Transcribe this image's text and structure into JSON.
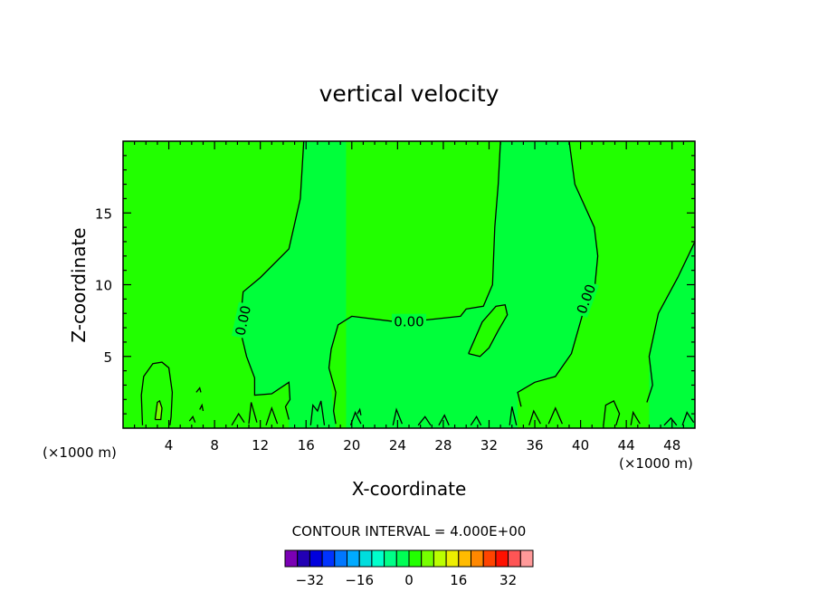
{
  "chart_data": {
    "type": "contour",
    "title": "vertical velocity",
    "xlabel": "X-coordinate",
    "ylabel": "Z-coordinate",
    "x_unit_left": "(×1000 m)",
    "x_unit_right": "(×1000 m)",
    "xlim": [
      0,
      50
    ],
    "ylim": [
      0,
      20
    ],
    "x_ticks": [
      4,
      8,
      12,
      16,
      20,
      24,
      28,
      32,
      36,
      40,
      44,
      48
    ],
    "y_ticks": [
      5,
      10,
      15
    ],
    "contour_labels": [
      {
        "text": "0.00",
        "x": 10.5,
        "y": 7.5,
        "angle": -78
      },
      {
        "text": "0.00",
        "x": 25.0,
        "y": 7.4,
        "angle": 0
      },
      {
        "text": "0.00",
        "x": 40.5,
        "y": 9.0,
        "angle": -70
      }
    ],
    "contour_interval_text": "CONTOUR INTERVAL = 4.000E+00",
    "colorbar": {
      "colors": [
        "#7a00b4",
        "#2200b4",
        "#0000dd",
        "#0033ff",
        "#0077ff",
        "#00aaff",
        "#00dddd",
        "#00ffcc",
        "#00ff88",
        "#00ff55",
        "#22ff00",
        "#77ff00",
        "#bbff00",
        "#eeee00",
        "#ffbb00",
        "#ff8800",
        "#ff4400",
        "#ff1100",
        "#ff5555",
        "#ff9999"
      ],
      "tick_labels": [
        "−32",
        "−16",
        "0",
        "16",
        "32"
      ],
      "tick_values": [
        -32,
        -16,
        0,
        16,
        32
      ],
      "min": -40,
      "max": 40
    },
    "fill_colors": {
      "positive_band": "#22ff00",
      "negative_band": "#00ff3a",
      "strong_positive": "#77ff00"
    },
    "regions": [
      {
        "name": "updraft-left",
        "level": "positive_band",
        "points": [
          [
            0,
            20
          ],
          [
            15.8,
            20
          ],
          [
            15.5,
            16
          ],
          [
            14.5,
            12.5
          ],
          [
            12,
            10.5
          ],
          [
            10.5,
            9.5
          ],
          [
            10.2,
            7
          ],
          [
            10.8,
            5
          ],
          [
            11.5,
            3.5
          ],
          [
            11.5,
            2.3
          ],
          [
            13,
            2.4
          ],
          [
            14.5,
            3.2
          ],
          [
            14.5,
            0
          ],
          [
            0,
            0
          ]
        ]
      },
      {
        "name": "updraft-middle",
        "level": "positive_band",
        "points": [
          [
            33.0,
            20
          ],
          [
            32.8,
            17
          ],
          [
            32.5,
            14
          ],
          [
            32.3,
            10
          ],
          [
            31.5,
            8.5
          ],
          [
            30.0,
            8.3
          ],
          [
            29.5,
            7.8
          ],
          [
            26,
            7.5
          ],
          [
            24,
            7.4
          ],
          [
            20,
            7.8
          ],
          [
            18.8,
            7.2
          ],
          [
            18.2,
            5.5
          ],
          [
            18,
            4.2
          ],
          [
            18.6,
            0
          ],
          [
            19.5,
            0
          ],
          [
            19.5,
            20
          ]
        ]
      },
      {
        "name": "updraft-right",
        "level": "positive_band",
        "points": [
          [
            39,
            20
          ],
          [
            39.5,
            17
          ],
          [
            41.2,
            14
          ],
          [
            41.5,
            12
          ],
          [
            41.2,
            9.5
          ],
          [
            40.2,
            8
          ],
          [
            39.2,
            5.2
          ],
          [
            37.8,
            3.6
          ],
          [
            36,
            3.2
          ],
          [
            34.5,
            2.5
          ],
          [
            34.5,
            0
          ],
          [
            46,
            0
          ],
          [
            46,
            5
          ],
          [
            46.8,
            8
          ],
          [
            48.5,
            10.5
          ],
          [
            50,
            13
          ],
          [
            50,
            20
          ]
        ]
      },
      {
        "name": "updraft-blob",
        "level": "positive_band",
        "points": [
          [
            30.2,
            5.2
          ],
          [
            31.4,
            7.4
          ],
          [
            32.6,
            8.5
          ],
          [
            33.4,
            8.6
          ],
          [
            33.6,
            7.9
          ],
          [
            32.8,
            6.8
          ],
          [
            32.0,
            5.6
          ],
          [
            31.2,
            5.0
          ]
        ]
      },
      {
        "name": "core-small",
        "level": "strong_positive",
        "points": [
          [
            2.8,
            0.6
          ],
          [
            3.0,
            1.8
          ],
          [
            3.2,
            1.9
          ],
          [
            3.4,
            1.4
          ],
          [
            3.3,
            0.6
          ]
        ]
      }
    ],
    "contours": [
      [
        [
          15.8,
          20
        ],
        [
          15.5,
          16
        ],
        [
          14.5,
          12.5
        ],
        [
          12,
          10.5
        ],
        [
          10.5,
          9.5
        ],
        [
          10.2,
          7
        ],
        [
          10.8,
          5
        ],
        [
          11.5,
          3.5
        ],
        [
          11.5,
          2.3
        ],
        [
          13,
          2.4
        ],
        [
          14.5,
          3.2
        ],
        [
          14.6,
          2
        ],
        [
          14.2,
          1.5
        ],
        [
          14.5,
          0.6
        ]
      ],
      [
        [
          33.0,
          20
        ],
        [
          32.8,
          17
        ],
        [
          32.5,
          14
        ],
        [
          32.3,
          10
        ],
        [
          31.5,
          8.5
        ],
        [
          30.0,
          8.3
        ],
        [
          29.5,
          7.8
        ],
        [
          26,
          7.5
        ],
        [
          24,
          7.4
        ],
        [
          20,
          7.8
        ],
        [
          18.8,
          7.2
        ],
        [
          18.2,
          5.5
        ],
        [
          18,
          4.2
        ],
        [
          18.6,
          2.5
        ],
        [
          18.4,
          1.2
        ],
        [
          18.6,
          0.3
        ]
      ],
      [
        [
          39,
          20
        ],
        [
          39.5,
          17
        ],
        [
          41.2,
          14
        ],
        [
          41.5,
          12
        ],
        [
          41.2,
          9.5
        ],
        [
          40.2,
          8
        ],
        [
          39.2,
          5.2
        ],
        [
          37.8,
          3.6
        ],
        [
          36,
          3.2
        ],
        [
          34.5,
          2.5
        ],
        [
          34.8,
          1.5
        ]
      ],
      [
        [
          50,
          13
        ],
        [
          48.5,
          10.5
        ],
        [
          46.8,
          8
        ],
        [
          46,
          5
        ],
        [
          46.3,
          3
        ],
        [
          45.8,
          1.8
        ]
      ],
      [
        [
          30.2,
          5.2
        ],
        [
          31.4,
          7.4
        ],
        [
          32.6,
          8.5
        ],
        [
          33.4,
          8.6
        ],
        [
          33.6,
          7.9
        ],
        [
          32.8,
          6.8
        ],
        [
          32.0,
          5.6
        ],
        [
          31.2,
          5.0
        ],
        [
          30.2,
          5.2
        ]
      ],
      [
        [
          1.7,
          0.2
        ],
        [
          1.6,
          2.3
        ],
        [
          1.8,
          3.6
        ],
        [
          2.6,
          4.5
        ],
        [
          3.4,
          4.6
        ],
        [
          4.0,
          4.2
        ],
        [
          4.3,
          2.5
        ],
        [
          4.2,
          0.8
        ],
        [
          4.1,
          0.2
        ]
      ],
      [
        [
          2.8,
          0.6
        ],
        [
          3.0,
          1.8
        ],
        [
          3.2,
          1.9
        ],
        [
          3.4,
          1.4
        ],
        [
          3.3,
          0.6
        ],
        [
          2.8,
          0.6
        ]
      ],
      [
        [
          9.5,
          0.2
        ],
        [
          10.1,
          1.0
        ],
        [
          10.6,
          0.4
        ]
      ],
      [
        [
          11.0,
          0.3
        ],
        [
          11.2,
          1.8
        ],
        [
          11.7,
          0.4
        ]
      ],
      [
        [
          12.5,
          0.2
        ],
        [
          13.0,
          1.4
        ],
        [
          13.5,
          0.3
        ]
      ],
      [
        [
          16.4,
          0.2
        ],
        [
          16.6,
          1.6
        ],
        [
          17.0,
          1.2
        ],
        [
          17.3,
          1.9
        ],
        [
          17.6,
          0.2
        ]
      ],
      [
        [
          19.9,
          0.2
        ],
        [
          20.3,
          1.1
        ],
        [
          20.8,
          0.3
        ]
      ],
      [
        [
          23.6,
          0.2
        ],
        [
          23.9,
          1.3
        ],
        [
          24.4,
          0.3
        ]
      ],
      [
        [
          25.8,
          0.2
        ],
        [
          26.4,
          0.8
        ],
        [
          26.9,
          0.2
        ]
      ],
      [
        [
          27.6,
          0.2
        ],
        [
          28.1,
          0.9
        ],
        [
          28.5,
          0.2
        ]
      ],
      [
        [
          30.4,
          0.2
        ],
        [
          30.9,
          0.8
        ],
        [
          31.3,
          0.2
        ]
      ],
      [
        [
          33.8,
          0.2
        ],
        [
          34.0,
          1.5
        ],
        [
          34.4,
          0.2
        ]
      ],
      [
        [
          35.5,
          0.2
        ],
        [
          35.9,
          1.2
        ],
        [
          36.5,
          0.3
        ]
      ],
      [
        [
          37.2,
          0.3
        ],
        [
          37.8,
          1.4
        ],
        [
          38.4,
          0.3
        ]
      ],
      [
        [
          42.0,
          0.2
        ],
        [
          42.2,
          1.6
        ],
        [
          42.9,
          1.9
        ],
        [
          43.4,
          1.0
        ],
        [
          43.1,
          0.2
        ]
      ],
      [
        [
          44.4,
          0.2
        ],
        [
          44.6,
          1.1
        ],
        [
          45.2,
          0.3
        ]
      ],
      [
        [
          47.3,
          0.2
        ],
        [
          47.9,
          0.7
        ],
        [
          48.4,
          0.2
        ]
      ],
      [
        [
          48.9,
          0.2
        ],
        [
          49.3,
          1.1
        ],
        [
          49.9,
          0.4
        ]
      ],
      [
        [
          6.4,
          2.5
        ],
        [
          6.7,
          2.8
        ],
        [
          6.8,
          2.5
        ]
      ],
      [
        [
          6.7,
          1.3
        ],
        [
          6.9,
          1.6
        ],
        [
          7.0,
          1.2
        ]
      ],
      [
        [
          5.8,
          0.5
        ],
        [
          6.1,
          0.8
        ],
        [
          6.3,
          0.4
        ]
      ],
      [
        [
          20.5,
          1.0
        ],
        [
          20.7,
          1.3
        ],
        [
          20.8,
          0.9
        ]
      ]
    ]
  }
}
